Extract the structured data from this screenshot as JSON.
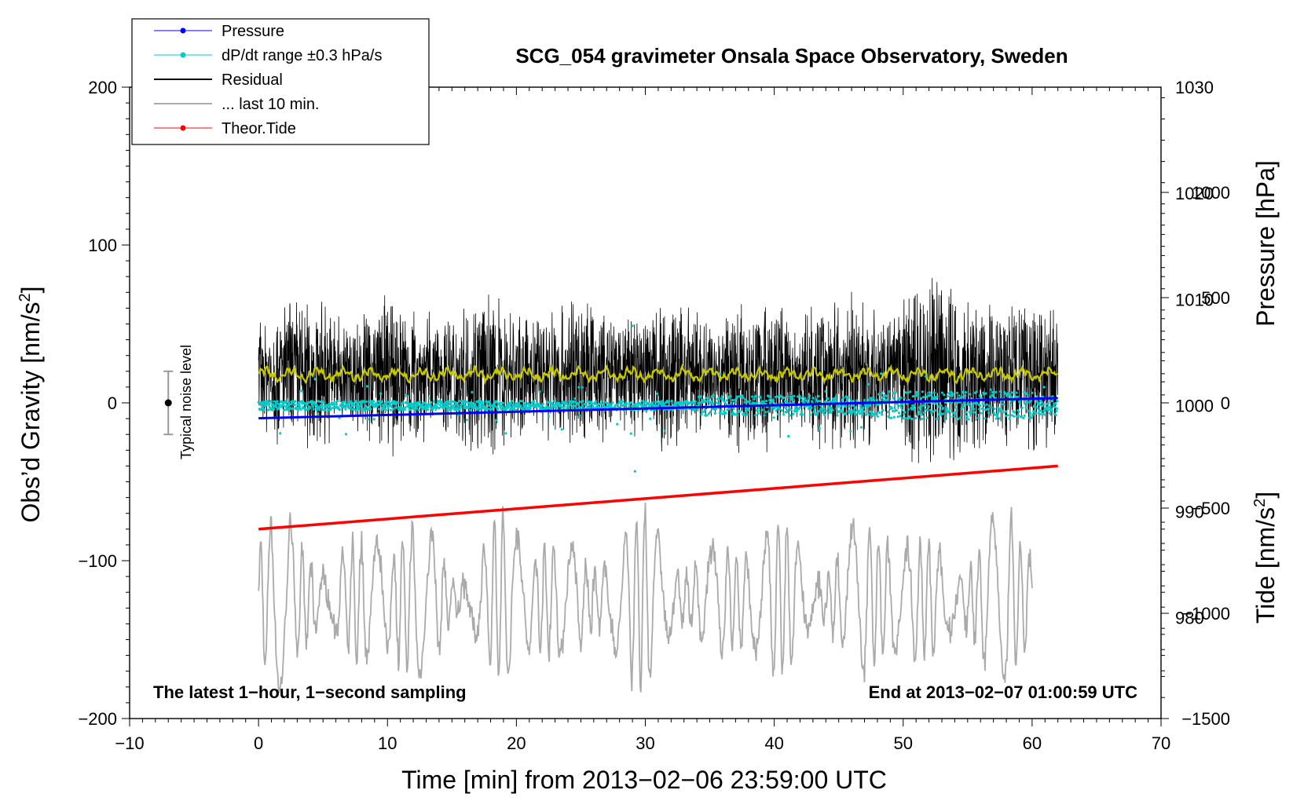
{
  "chart_data": {
    "type": "line",
    "title": "SCG_054 gravimeter Onsala Space Observatory, Sweden",
    "xlabel": "Time [min] from 2013−02−06 23:59:00 UTC",
    "ylabel_left": "Obs’d Gravity [nm/s²]",
    "ylabel_left_main": "Obs’d Gravity [nm/s",
    "ylabel_left_sup": "2",
    "ylabel_left_end": "]",
    "ylabel_right_pressure": "Pressure [hPa]",
    "ylabel_right_tide": "Tide [nm/s²]",
    "ylabel_right_tide_main": "Tide [nm/s",
    "ylabel_right_tide_sup": "2",
    "ylabel_right_tide_end": "]",
    "xlim": [
      -10,
      70
    ],
    "ylim": [
      -200,
      200
    ],
    "pressure_lim": [
      970.5,
      1030
    ],
    "tide_lim": [
      -1500,
      1500
    ],
    "x_ticks": [
      -10,
      0,
      10,
      20,
      30,
      40,
      50,
      60,
      70
    ],
    "x_tick_labels": [
      "−10",
      "0",
      "10",
      "20",
      "30",
      "40",
      "50",
      "60",
      "70"
    ],
    "y_ticks": [
      -200,
      -100,
      0,
      100,
      200
    ],
    "y_tick_labels": [
      "−200",
      "−100",
      "0",
      "100",
      "200"
    ],
    "pressure_ticks": [
      980,
      990,
      1000,
      1010,
      1020,
      1030
    ],
    "pressure_tick_labels": [
      "980",
      "990",
      "1000",
      "1010",
      "1020",
      "1030"
    ],
    "tide_ticks": [
      -1500,
      -1000,
      -500,
      0,
      500,
      1000
    ],
    "tide_tick_labels": [
      "−1500",
      "−1000",
      "−500",
      "0",
      "500",
      "1000"
    ],
    "legend": [
      {
        "label": "Pressure",
        "color": "#0000ff",
        "style": "line-dot"
      },
      {
        "label": "dP/dt range ±0.3 hPa/s",
        "color": "#00cccc",
        "style": "line-dot"
      },
      {
        "label": "Residual",
        "color": "#000000",
        "style": "line"
      },
      {
        "label": "... last 10 min.",
        "color": "#aaaaaa",
        "style": "line"
      },
      {
        "label": "Theor.Tide",
        "color": "#ff0000",
        "style": "line-dot"
      }
    ],
    "annotations": {
      "bottom_left": "The latest 1−hour, 1−second sampling",
      "bottom_right": "End at 2013−02−07 01:00:59 UTC",
      "noise_label": "Typical noise level"
    },
    "noise_bar": {
      "x": -7,
      "center": 0,
      "half_range": 20
    },
    "series": [
      {
        "name": "Pressure",
        "axis": "pressure",
        "x_range": [
          0,
          62
        ],
        "start": 998.8,
        "end": 1000.7,
        "color": "#0000ff"
      },
      {
        "name": "dP/dt range ±0.3 hPa/s",
        "axis": "pressure",
        "x_range": [
          0,
          62
        ],
        "center": 1000.0,
        "spread": 2.5,
        "color": "#00cccc"
      },
      {
        "name": "Residual",
        "axis": "gravity",
        "x_range": [
          0,
          62
        ],
        "center": 18,
        "spread": 45,
        "color": "#000000"
      },
      {
        "name": "Residual (smoothed)",
        "axis": "gravity",
        "x_range": [
          0,
          62
        ],
        "center": 18,
        "color": "#c8c800"
      },
      {
        "name": "... last 10 min.",
        "axis": "gravity",
        "x_range": [
          0,
          60
        ],
        "center": -125,
        "spread": 50,
        "color": "#aaaaaa"
      },
      {
        "name": "Theor.Tide",
        "axis": "tide",
        "x_range": [
          0,
          62
        ],
        "start": -600,
        "end": -300,
        "color": "#ff0000"
      }
    ]
  }
}
